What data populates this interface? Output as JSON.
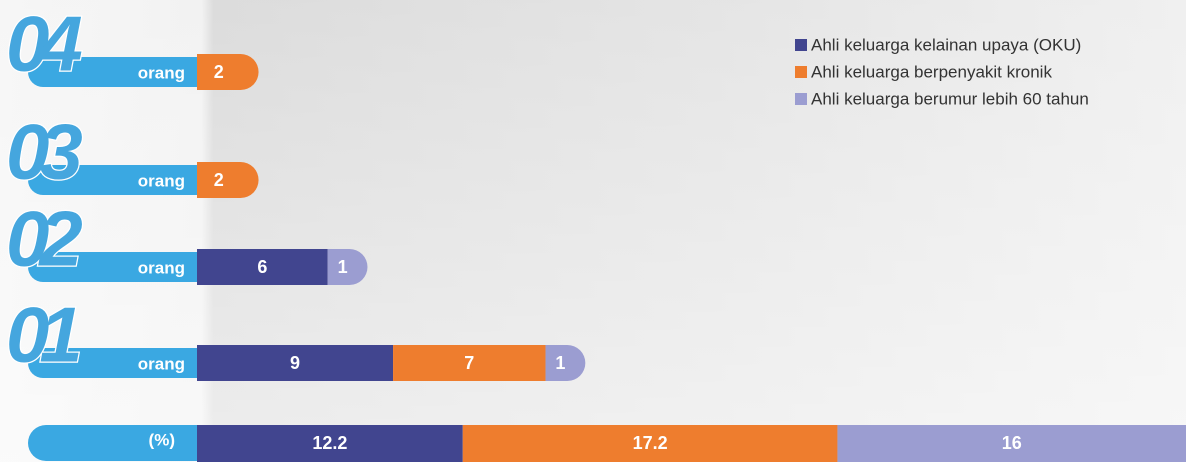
{
  "chart_data": {
    "type": "bar",
    "orientation": "horizontal",
    "stacked": true,
    "categories": [
      "04",
      "03",
      "02",
      "01"
    ],
    "unit": "orang",
    "series": [
      {
        "name": "Ahli keluarga kelainan upaya (OKU)",
        "color": "#41458f",
        "values": [
          null,
          null,
          6,
          9
        ]
      },
      {
        "name": "Ahli keluarga berpenyakit kronik",
        "color": "#ee7d2e",
        "values": [
          2,
          2,
          null,
          7
        ]
      },
      {
        "name": "Ahli keluarga berumur lebih 60 tahun",
        "color": "#9b9dd1",
        "values": [
          null,
          null,
          1,
          1
        ]
      }
    ],
    "percent": {
      "label": "(%)",
      "values": [
        12.2,
        17.2,
        16
      ]
    },
    "legend": "top-right"
  }
}
